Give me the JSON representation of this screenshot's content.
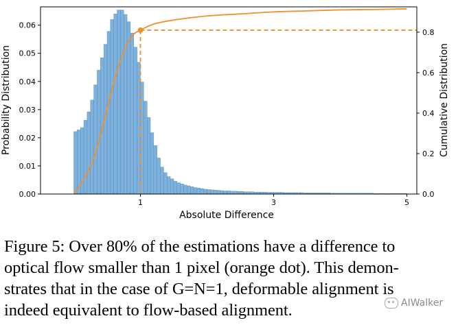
{
  "chart_data": {
    "type": "bar",
    "xlabel": "Absolute Difference",
    "ylabel": "Probability Distribution",
    "y2label": "Cumulative Distribution",
    "xlim": [
      -0.5,
      5.15
    ],
    "ylim": [
      0,
      0.0665
    ],
    "y2lim": [
      0,
      0.925
    ],
    "x_ticks": [
      1,
      3,
      5
    ],
    "y_ticks": [
      0.0,
      0.01,
      0.02,
      0.03,
      0.04,
      0.05,
      0.06
    ],
    "y_tick_labels": [
      "0.00",
      "0.01",
      "0.02",
      "0.03",
      "0.04",
      "0.05",
      "0.06"
    ],
    "y2_ticks": [
      0.0,
      0.2,
      0.4,
      0.6,
      0.8
    ],
    "y2_tick_labels": [
      "0.0",
      "0.2",
      "0.4",
      "0.6",
      "0.8"
    ],
    "histogram": {
      "bin_width": 0.05,
      "bin_start": 0.0,
      "color": "#7eb2dd",
      "edge_color": "#4a86b8",
      "values": [
        0.0222,
        0.0228,
        0.0236,
        0.0262,
        0.0292,
        0.0334,
        0.0388,
        0.044,
        0.0484,
        0.0532,
        0.0578,
        0.062,
        0.064,
        0.0654,
        0.0654,
        0.0638,
        0.0612,
        0.0572,
        0.0522,
        0.0468,
        0.0398,
        0.033,
        0.0272,
        0.0218,
        0.0172,
        0.0128,
        0.0096,
        0.0076,
        0.0062,
        0.0054,
        0.0046,
        0.004,
        0.0036,
        0.0032,
        0.0029,
        0.0026,
        0.0023,
        0.0021,
        0.0019,
        0.0017,
        0.0016,
        0.0015,
        0.0014,
        0.0013,
        0.0012,
        0.0011,
        0.0011,
        0.001,
        0.001,
        0.0009,
        0.0009,
        0.0008,
        0.0008,
        0.0008,
        0.0007,
        0.0007,
        0.0007,
        0.0007,
        0.0006,
        0.0006,
        0.0006,
        0.0006,
        0.0006,
        0.0005,
        0.0005,
        0.0005,
        0.0005,
        0.0005,
        0.0005,
        0.0004,
        0.0004,
        0.0004,
        0.0004,
        0.0004,
        0.0004,
        0.0004,
        0.0004,
        0.0003,
        0.0003,
        0.0003,
        0.0003,
        0.0003,
        0.0003,
        0.0003,
        0.0003,
        0.0003,
        0.0003,
        0.0003,
        0.0003,
        0.0003,
        0.0002,
        0.0002,
        0.0002,
        0.0002,
        0.0002,
        0.0002,
        0.0002,
        0.0002,
        0.0002,
        0.0002
      ]
    },
    "cdf": {
      "color": "#f28e2b",
      "x": [
        0.0,
        0.1,
        0.2,
        0.3,
        0.4,
        0.5,
        0.6,
        0.7,
        0.8,
        0.9,
        1.0,
        1.2,
        1.5,
        2.0,
        2.5,
        3.0,
        3.5,
        4.0,
        4.5,
        5.0
      ],
      "y": [
        0.0,
        0.045,
        0.1,
        0.18,
        0.29,
        0.42,
        0.55,
        0.66,
        0.74,
        0.79,
        0.81,
        0.84,
        0.86,
        0.88,
        0.89,
        0.9,
        0.905,
        0.91,
        0.912,
        0.915
      ]
    },
    "marker": {
      "x": 1.0,
      "y": 0.81
    }
  },
  "caption": {
    "lines": [
      "Figure 5: Over 80% of the estimations have a difference to",
      "optical flow smaller than 1 pixel (orange dot). This demon-",
      "strates that in the case of G=N=1, deformable alignment is",
      "indeed equivalent to flow-based alignment."
    ]
  },
  "watermark": {
    "text": "AIWalker",
    "icon": "wechat-icon"
  }
}
